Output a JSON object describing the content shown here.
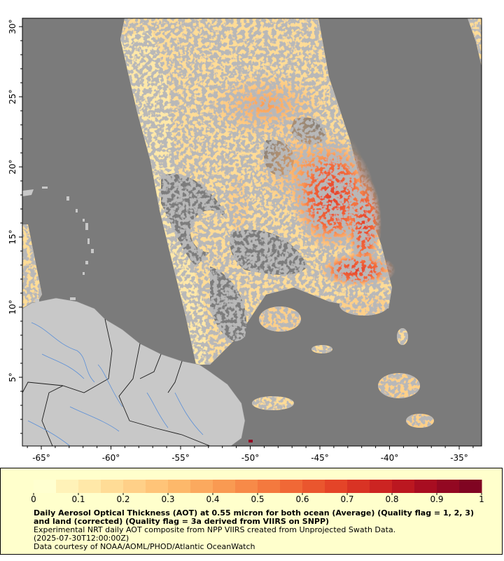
{
  "map": {
    "x_axis": {
      "ticks": [
        {
          "value": -65,
          "label": "-65°"
        },
        {
          "value": -60,
          "label": "-60°"
        },
        {
          "value": -55,
          "label": "-55°"
        },
        {
          "value": -50,
          "label": "-50°"
        },
        {
          "value": -45,
          "label": "-45°"
        },
        {
          "value": -40,
          "label": "-40°"
        },
        {
          "value": -35,
          "label": "-35°"
        }
      ]
    },
    "y_axis": {
      "ticks": [
        {
          "value": 5,
          "label": "5°"
        },
        {
          "value": 10,
          "label": "10°"
        },
        {
          "value": 15,
          "label": "15°"
        },
        {
          "value": 20,
          "label": "20°"
        },
        {
          "value": 25,
          "label": "25°"
        },
        {
          "value": 30,
          "label": "30°"
        }
      ]
    },
    "colors": {
      "no_data": "#7b7b7b",
      "land": "#c8c8c8",
      "border": "#1a1a1a",
      "river": "#5a8fd8"
    }
  },
  "legend": {
    "colors": [
      "#ffffd0",
      "#fff2b8",
      "#ffe8a8",
      "#ffdc96",
      "#ffd088",
      "#ffc478",
      "#fdb86a",
      "#fba95e",
      "#f99a52",
      "#f78a48",
      "#f4793e",
      "#f06836",
      "#ea562e",
      "#e44428",
      "#d93324",
      "#cc2422",
      "#bb1720",
      "#a80d21",
      "#930822",
      "#800522"
    ],
    "ticks": [
      "0",
      "0.1",
      "0.2",
      "0.3",
      "0.4",
      "0.5",
      "0.6",
      "0.7",
      "0.8",
      "0.9",
      "1"
    ]
  },
  "caption": {
    "title": "Daily Aerosol Optical Thickness (AOT) at 0.55 micron for both ocean (Average) (Quality flag = 1, 2, 3) and land (corrected) (Quality flag = 3a derived from VIIRS on SNPP)",
    "line1": "Experimental NRT daily AOT composite from NPP VIIRS created from Unprojected Swath Data.",
    "line2": "(2025-07-30T12:00:00Z)",
    "line3": "Data courtesy of NOAA/AOML/PHOD/Atlantic OceanWatch"
  }
}
